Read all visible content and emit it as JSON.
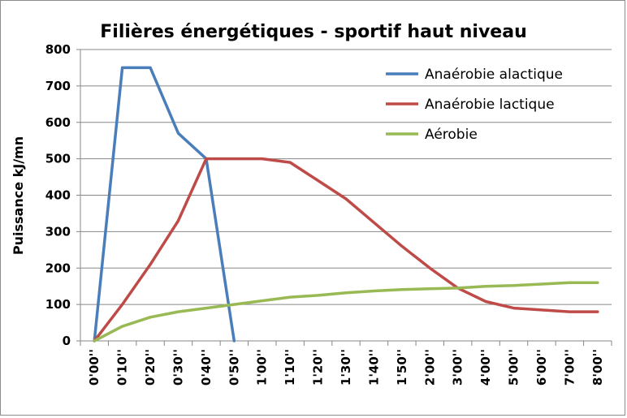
{
  "chart_data": {
    "type": "line",
    "title": "Filières énergétiques - sportif haut niveau",
    "ylabel": "Puissance kJ/mn",
    "xlabel": "",
    "ylim": [
      0,
      800
    ],
    "yticks": [
      "0",
      "100",
      "200",
      "300",
      "400",
      "500",
      "600",
      "700",
      "800"
    ],
    "categories": [
      "0'00''",
      "0'10''",
      "0'20''",
      "0'30''",
      "0'40''",
      "0'50''",
      "1'00''",
      "1'10''",
      "1'20''",
      "1'30''",
      "1'40''",
      "1'50''",
      "2'00''",
      "3'00''",
      "4'00''",
      "5'00''",
      "6'00''",
      "7'00''",
      "8'00''"
    ],
    "grid": true,
    "legend_position": "top-right",
    "series": [
      {
        "name": "Anaérobie alactique",
        "color": "#4a7ebb",
        "values": [
          0,
          750,
          750,
          570,
          500,
          0,
          null,
          null,
          null,
          null,
          null,
          null,
          null,
          null,
          null,
          null,
          null,
          null,
          null
        ]
      },
      {
        "name": "Anaérobie lactique",
        "color": "#be4b48",
        "values": [
          0,
          100,
          210,
          330,
          500,
          500,
          500,
          490,
          440,
          390,
          325,
          260,
          200,
          145,
          108,
          90,
          85,
          80,
          80
        ]
      },
      {
        "name": "Aérobie",
        "color": "#98b954",
        "values": [
          0,
          40,
          65,
          80,
          90,
          100,
          110,
          120,
          125,
          132,
          137,
          141,
          143,
          145,
          150,
          152,
          156,
          160,
          160
        ]
      }
    ]
  }
}
